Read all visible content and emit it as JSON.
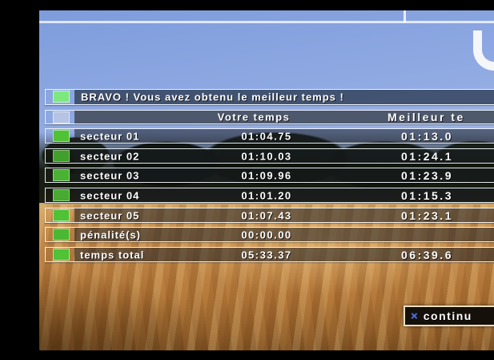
{
  "banner": {
    "label": "BRAVO ! Vous avez obtenu le meilleur temps !"
  },
  "logo": {
    "icon": "u-logo"
  },
  "table": {
    "columns": {
      "yours": "Votre temps",
      "best": "Meilleur te"
    },
    "rows": [
      {
        "label": "secteur 01",
        "yours": "01:04.75",
        "best": "01:13.0"
      },
      {
        "label": "secteur 02",
        "yours": "01:10.03",
        "best": "01:24.1"
      },
      {
        "label": "secteur 03",
        "yours": "01:09.96",
        "best": "01:23.9"
      },
      {
        "label": "secteur 04",
        "yours": "01:01.20",
        "best": "01:15.3"
      },
      {
        "label": "secteur 05",
        "yours": "01:07.43",
        "best": "01:23.1"
      },
      {
        "label": "pénalité(s)",
        "yours": "00:00.00",
        "best": ""
      },
      {
        "label": "temps total",
        "yours": "05:33.37",
        "best": "06:39.6"
      }
    ]
  },
  "button": {
    "glyph": "×",
    "label": "continu"
  },
  "colors": {
    "banner_square": "#7ee87f",
    "header_square": "#b6c3e5",
    "row_square": "#4fc236",
    "cross_blue": "#5273e0",
    "button_border": "#e8dec2"
  }
}
